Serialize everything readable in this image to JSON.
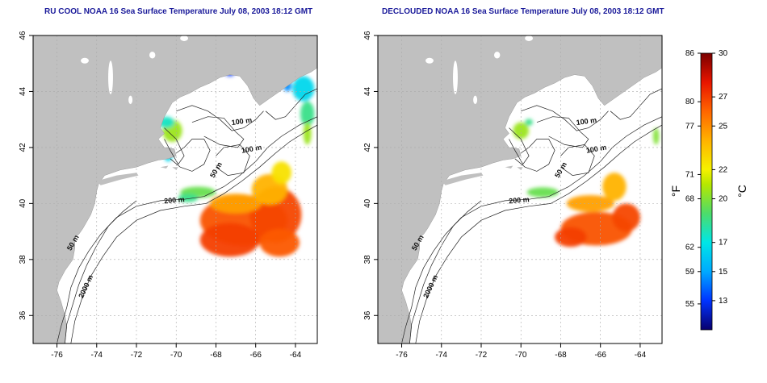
{
  "panels": [
    {
      "title": "RU COOL NOAA 16 Sea Surface Temperature July 08, 2003 18:12 GMT",
      "variant": "cool"
    },
    {
      "title": "DECLOUDED NOAA 16 Sea Surface Temperature July 08, 2003 18:12 GMT",
      "variant": "declouded"
    }
  ],
  "axes": {
    "lon_ticks": [
      "-76",
      "-74",
      "-72",
      "-70",
      "-68",
      "-66",
      "-64"
    ],
    "lat_ticks": [
      "36",
      "38",
      "40",
      "42",
      "44",
      "46"
    ],
    "xlim": [
      -77.2,
      -62.9
    ],
    "ylim": [
      35.0,
      46.0
    ],
    "grid": true
  },
  "contours": {
    "labels": [
      "100 m",
      "100 m",
      "50 m",
      "200 m",
      "50 m",
      "2000 m"
    ]
  },
  "colorbar": {
    "fahrenheit_unit": "°F",
    "celsius_unit": "°C",
    "fahrenheit_ticks": [
      "86",
      "80",
      "77",
      "71",
      "68",
      "62",
      "59",
      "55"
    ],
    "celsius_ticks": [
      "30",
      "27",
      "25",
      "22",
      "20",
      "17",
      "15",
      "13"
    ],
    "range_c": [
      11,
      30
    ]
  },
  "colors": {
    "land": "#c0c0c0",
    "water": "#ffffff",
    "title": "#1a1a9a"
  }
}
